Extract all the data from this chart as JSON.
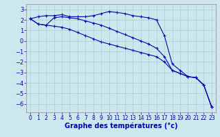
{
  "background_color": "#cce8ee",
  "grid_color": "#aacdd5",
  "line_color": "#0000bb",
  "marker": "+",
  "xlabel": "Graphe des températures (°c)",
  "xlabel_fontsize": 7,
  "tick_fontsize": 6,
  "xlim": [
    -0.5,
    23.5
  ],
  "ylim": [
    -6.8,
    3.5
  ],
  "yticks": [
    3,
    2,
    1,
    0,
    -1,
    -2,
    -3,
    -4,
    -5,
    -6
  ],
  "xticks": [
    0,
    1,
    2,
    3,
    4,
    5,
    6,
    7,
    8,
    9,
    10,
    11,
    12,
    13,
    14,
    15,
    16,
    17,
    18,
    19,
    20,
    21,
    22,
    23
  ],
  "series": [
    [
      2.1,
      2.3,
      2.4,
      2.4,
      2.5,
      2.3,
      2.3,
      2.3,
      2.4,
      2.6,
      2.8,
      2.7,
      2.6,
      2.4,
      2.3,
      2.2,
      2.0,
      0.5,
      -2.2,
      -2.8,
      -3.4,
      -3.5,
      -4.2,
      -6.3
    ],
    [
      2.1,
      1.6,
      1.5,
      1.4,
      1.3,
      1.1,
      0.8,
      0.5,
      0.2,
      -0.1,
      -0.3,
      -0.5,
      -0.7,
      -0.9,
      -1.1,
      -1.3,
      -1.5,
      -2.0,
      -2.8,
      -3.1,
      -3.4,
      -3.5,
      -4.2,
      -6.3
    ],
    [
      2.1,
      1.6,
      1.5,
      2.2,
      2.3,
      2.2,
      2.1,
      1.9,
      1.7,
      1.5,
      1.2,
      0.9,
      0.6,
      0.3,
      0.0,
      -0.3,
      -0.7,
      -1.5,
      -2.8,
      -3.1,
      -3.4,
      -3.5,
      -4.2,
      -6.3
    ]
  ]
}
